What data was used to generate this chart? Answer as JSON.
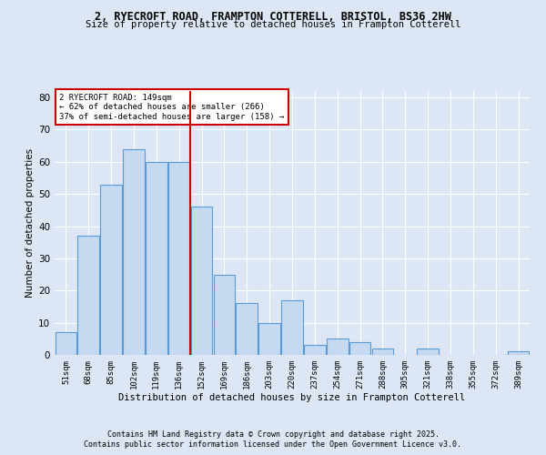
{
  "title1": "2, RYECROFT ROAD, FRAMPTON COTTERELL, BRISTOL, BS36 2HW",
  "title2": "Size of property relative to detached houses in Frampton Cotterell",
  "xlabel": "Distribution of detached houses by size in Frampton Cotterell",
  "ylabel": "Number of detached properties",
  "categories": [
    "51sqm",
    "68sqm",
    "85sqm",
    "102sqm",
    "119sqm",
    "136sqm",
    "152sqm",
    "169sqm",
    "186sqm",
    "203sqm",
    "220sqm",
    "237sqm",
    "254sqm",
    "271sqm",
    "288sqm",
    "305sqm",
    "321sqm",
    "338sqm",
    "355sqm",
    "372sqm",
    "389sqm"
  ],
  "values": [
    7,
    37,
    53,
    64,
    60,
    60,
    46,
    25,
    16,
    10,
    17,
    3,
    5,
    4,
    2,
    0,
    2,
    0,
    0,
    0,
    1
  ],
  "bar_color": "#c5d9f1",
  "bar_edge_color": "#5b9bd5",
  "property_line_index": 6,
  "annotation_text": "2 RYECROFT ROAD: 149sqm\n← 62% of detached houses are smaller (266)\n37% of semi-detached houses are larger (158) →",
  "annotation_box_color": "#ffffff",
  "annotation_box_edge": "#cc0000",
  "property_line_color": "#cc0000",
  "background_color": "#dce6f5",
  "grid_color": "#ffffff",
  "ylim": [
    0,
    82
  ],
  "yticks": [
    0,
    10,
    20,
    30,
    40,
    50,
    60,
    70,
    80
  ],
  "footer1": "Contains HM Land Registry data © Crown copyright and database right 2025.",
  "footer2": "Contains public sector information licensed under the Open Government Licence v3.0."
}
